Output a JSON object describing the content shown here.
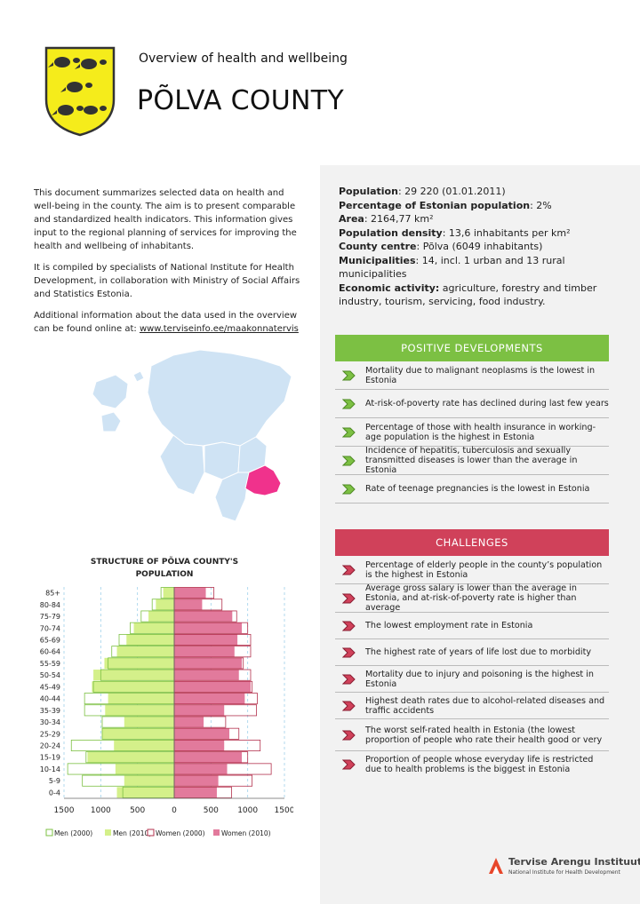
{
  "header": {
    "subtitle": "Overview of health and wellbeing",
    "title": "PÕLVA COUNTY",
    "crest_colors": {
      "field": "#f5ec1b",
      "border": "#333333"
    }
  },
  "intro": {
    "p1": "This document summarizes selected data on health and well-being in the county. The aim is to present comparable and standardized health indicators. This information gives input to the regional planning of services for improving the health and wellbeing of inhabitants.",
    "p2": "It is compiled by specialists of National Institute for Health Development, in collaboration with Ministry of Social Affairs and Statistics Estonia.",
    "p3": "Additional information about the data used in the overview can be found online at: ",
    "link": "www.terviseinfo.ee/maakonnatervis"
  },
  "facts": [
    {
      "label": "Population",
      "value": ": 29 220 (01.01.2011)"
    },
    {
      "label": "Percentage of Estonian population",
      "value": ": 2%"
    },
    {
      "label": "Area",
      "value": ": 2164,77 km²"
    },
    {
      "label": "Population density",
      "value": ": 13,6 inhabitants per km²"
    },
    {
      "label": "County centre",
      "value": ": Põlva (6049 inhabitants)"
    },
    {
      "label": "Municipalities",
      "value": ": 14, incl. 1 urban and 13 rural municipalities"
    },
    {
      "label": "Economic activity:",
      "value": " agriculture, forestry and timber industry, tourism, servicing, food industry."
    }
  ],
  "map": {
    "base_color": "#cfe3f4",
    "highlight_color": "#f0328c"
  },
  "positive": {
    "heading": "POSITIVE DEVELOPMENTS",
    "color": "#7cc043",
    "items": [
      "Mortality due to malignant neoplasms is the lowest in Estonia",
      "At-risk-of-poverty rate has declined during last few years",
      "Percentage of those with health insurance in working-age population is the highest in Estonia",
      "Incidence of hepatitis, tuberculosis and sexually transmitted diseases is lower than the average in Estonia",
      "Rate of teenage pregnancies is the lowest in Estonia"
    ]
  },
  "challenges": {
    "heading": "CHALLENGES",
    "color": "#d0415a",
    "items": [
      "Percentage of elderly people in the county’s population is the highest in Estonia",
      "Average gross salary is lower than the average in Estonia, and at-risk-of-poverty rate is higher than average",
      "The lowest employment rate in Estonia",
      "The highest rate of years of life lost due to morbidity",
      "Mortality due to injury and poisoning is the highest in Estonia",
      "Highest death rates due to alcohol-related diseases and traffic accidents",
      "The worst self-rated health in Estonia (the lowest proportion of people who rate their health good or very",
      "Proportion of people whose everyday life is restricted due to health problems is the biggest in Estonia"
    ]
  },
  "chart_title": "STRUCTURE OF PÕLVA COUNTY'S POPULATION",
  "chart_data": {
    "type": "bar",
    "orientation": "horizontal-pyramid",
    "title": "STRUCTURE OF PÕLVA COUNTY'S POPULATION",
    "categories": [
      "0-4",
      "5-9",
      "10-14",
      "15-19",
      "20-24",
      "25-29",
      "30-34",
      "35-39",
      "40-44",
      "45-49",
      "50-54",
      "55-59",
      "60-64",
      "65-69",
      "70-74",
      "75-79",
      "80-84",
      "85+"
    ],
    "x_ticks": [
      "1500",
      "1000",
      "500",
      "0",
      "500",
      "1000",
      "1500"
    ],
    "xlim": [
      -1500,
      1500
    ],
    "grid": true,
    "legend_position": "bottom",
    "colors": {
      "men2010": "#d4f08a",
      "women2010": "#e27a9c",
      "outline_men": "#7cc043",
      "outline_women": "#b3324e"
    },
    "series": [
      {
        "name": "Men (2000)",
        "values": [
          -700,
          -1250,
          -1450,
          -1200,
          -1400,
          -980,
          -980,
          -1220,
          -1220,
          -1100,
          -1000,
          -900,
          -850,
          -750,
          -600,
          -450,
          -300,
          -180
        ]
      },
      {
        "name": "Men (2010)",
        "values": [
          -780,
          -680,
          -800,
          -1180,
          -820,
          -980,
          -680,
          -940,
          -900,
          -1120,
          -1100,
          -950,
          -780,
          -650,
          -550,
          -350,
          -250,
          -150
        ]
      },
      {
        "name": "Women (2000)",
        "values": [
          780,
          1060,
          1320,
          1000,
          1170,
          880,
          700,
          1120,
          1130,
          1060,
          1040,
          940,
          1040,
          1040,
          1000,
          850,
          650,
          540
        ]
      },
      {
        "name": "Women (2010)",
        "values": [
          580,
          600,
          720,
          920,
          680,
          750,
          400,
          680,
          960,
          1040,
          880,
          920,
          820,
          860,
          920,
          790,
          380,
          430
        ]
      }
    ]
  },
  "logo": {
    "main": "Tervise Arengu Instituut",
    "sub": "National Institute for Health Development",
    "color": "#e7472b"
  }
}
